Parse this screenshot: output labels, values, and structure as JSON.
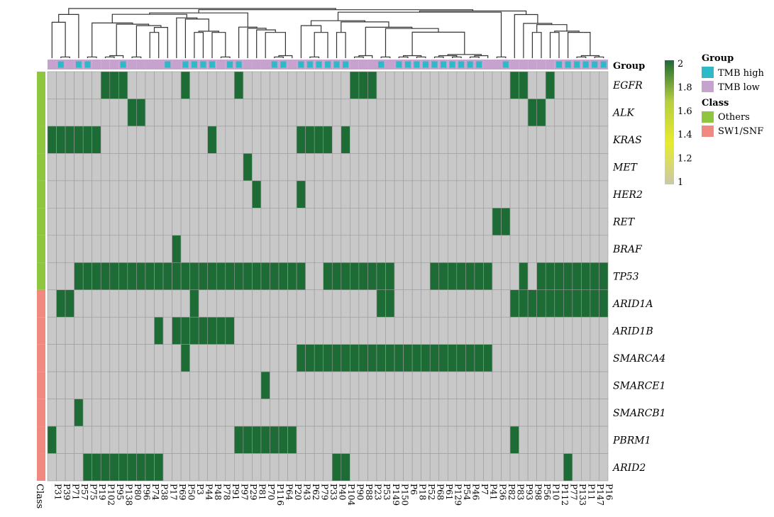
{
  "chart_data": {
    "type": "heatmap",
    "samples": [
      "P31",
      "P39",
      "P71",
      "P57",
      "P75",
      "P19",
      "P102",
      "P95",
      "P138",
      "P80",
      "P96",
      "P74",
      "P38",
      "P17",
      "P69",
      "P50",
      "P3",
      "P44",
      "P48",
      "P78",
      "P91",
      "P97",
      "P29",
      "P81",
      "P70",
      "P116",
      "P64",
      "P20",
      "P43",
      "P62",
      "P79",
      "P33",
      "P40",
      "P104",
      "P90",
      "P88",
      "P23",
      "P53",
      "P149",
      "P150",
      "P6",
      "P18",
      "P52",
      "P68",
      "P61",
      "P129",
      "P54",
      "P46",
      "P7",
      "P41",
      "P36",
      "P82",
      "P83",
      "P93",
      "P98",
      "P56",
      "P10",
      "P112",
      "P77",
      "P133",
      "P11",
      "P147",
      "P16"
    ],
    "genes": [
      "EGFR",
      "ALK",
      "KRAS",
      "MET",
      "HER2",
      "RET",
      "BRAF",
      "TP53",
      "ARID1A",
      "ARID1B",
      "SMARCA4",
      "SMARCE1",
      "SMARCB1",
      "PBRM1",
      "ARID2"
    ],
    "gene_class": [
      "Others",
      "Others",
      "Others",
      "Others",
      "Others",
      "Others",
      "Others",
      "Others",
      "SW1/SNF",
      "SW1/SNF",
      "SW1/SNF",
      "SW1/SNF",
      "SW1/SNF",
      "SW1/SNF",
      "SW1/SNF"
    ],
    "sample_group": [
      "TMB low",
      "TMB high",
      "TMB low",
      "TMB high",
      "TMB high",
      "TMB low",
      "TMB low",
      "TMB low",
      "TMB high",
      "TMB low",
      "TMB low",
      "TMB low",
      "TMB low",
      "TMB high",
      "TMB low",
      "TMB high",
      "TMB high",
      "TMB high",
      "TMB high",
      "TMB low",
      "TMB high",
      "TMB high",
      "TMB low",
      "TMB low",
      "TMB low",
      "TMB high",
      "TMB high",
      "TMB low",
      "TMB high",
      "TMB high",
      "TMB high",
      "TMB high",
      "TMB high",
      "TMB high",
      "TMB low",
      "TMB low",
      "TMB low",
      "TMB high",
      "TMB low",
      "TMB high",
      "TMB high",
      "TMB high",
      "TMB high",
      "TMB high",
      "TMB high",
      "TMB high",
      "TMB high",
      "TMB high",
      "TMB high",
      "TMB low",
      "TMB low",
      "TMB high",
      "TMB low",
      "TMB low",
      "TMB low",
      "TMB low",
      "TMB low",
      "TMB high",
      "TMB high",
      "TMB high",
      "TMB high",
      "TMB high",
      "TMB high"
    ],
    "matrix": [
      [
        1,
        1,
        1,
        1,
        1,
        1,
        2,
        2,
        2,
        1,
        1,
        1,
        1,
        1,
        1,
        2,
        1,
        1,
        1,
        1,
        1,
        2,
        1,
        1,
        1,
        1,
        1,
        1,
        1,
        1,
        1,
        1,
        1,
        1,
        2,
        2,
        2,
        1,
        1,
        1,
        1,
        1,
        1,
        1,
        1,
        1,
        1,
        1,
        1,
        1,
        1,
        1,
        2,
        2,
        1,
        1,
        2,
        1,
        1,
        1,
        1,
        1,
        1
      ],
      [
        1,
        1,
        1,
        1,
        1,
        1,
        1,
        1,
        1,
        2,
        2,
        1,
        1,
        1,
        1,
        1,
        1,
        1,
        1,
        1,
        1,
        1,
        1,
        1,
        1,
        1,
        1,
        1,
        1,
        1,
        1,
        1,
        1,
        1,
        1,
        1,
        1,
        1,
        1,
        1,
        1,
        1,
        1,
        1,
        1,
        1,
        1,
        1,
        1,
        1,
        1,
        1,
        1,
        1,
        2,
        2,
        1,
        1,
        1,
        1,
        1,
        1,
        1
      ],
      [
        2,
        2,
        2,
        2,
        2,
        2,
        1,
        1,
        1,
        1,
        1,
        1,
        1,
        1,
        1,
        1,
        1,
        1,
        2,
        1,
        1,
        1,
        1,
        1,
        1,
        1,
        1,
        1,
        2,
        2,
        2,
        2,
        1,
        2,
        1,
        1,
        1,
        1,
        1,
        1,
        1,
        1,
        1,
        1,
        1,
        1,
        1,
        1,
        1,
        1,
        1,
        1,
        1,
        1,
        1,
        1,
        1,
        1,
        1,
        1,
        1,
        1,
        1
      ],
      [
        1,
        1,
        1,
        1,
        1,
        1,
        1,
        1,
        1,
        1,
        1,
        1,
        1,
        1,
        1,
        1,
        1,
        1,
        1,
        1,
        1,
        1,
        2,
        1,
        1,
        1,
        1,
        1,
        1,
        1,
        1,
        1,
        1,
        1,
        1,
        1,
        1,
        1,
        1,
        1,
        1,
        1,
        1,
        1,
        1,
        1,
        1,
        1,
        1,
        1,
        1,
        1,
        1,
        1,
        1,
        1,
        1,
        1,
        1,
        1,
        1,
        1,
        1
      ],
      [
        1,
        1,
        1,
        1,
        1,
        1,
        1,
        1,
        1,
        1,
        1,
        1,
        1,
        1,
        1,
        1,
        1,
        1,
        1,
        1,
        1,
        1,
        1,
        2,
        1,
        1,
        1,
        1,
        2,
        1,
        1,
        1,
        1,
        1,
        1,
        1,
        1,
        1,
        1,
        1,
        1,
        1,
        1,
        1,
        1,
        1,
        1,
        1,
        1,
        1,
        1,
        1,
        1,
        1,
        1,
        1,
        1,
        1,
        1,
        1,
        1,
        1,
        1
      ],
      [
        1,
        1,
        1,
        1,
        1,
        1,
        1,
        1,
        1,
        1,
        1,
        1,
        1,
        1,
        1,
        1,
        1,
        1,
        1,
        1,
        1,
        1,
        1,
        1,
        1,
        1,
        1,
        1,
        1,
        1,
        1,
        1,
        1,
        1,
        1,
        1,
        1,
        1,
        1,
        1,
        1,
        1,
        1,
        1,
        1,
        1,
        1,
        1,
        1,
        1,
        2,
        2,
        1,
        1,
        1,
        1,
        1,
        1,
        1,
        1,
        1,
        1,
        1
      ],
      [
        1,
        1,
        1,
        1,
        1,
        1,
        1,
        1,
        1,
        1,
        1,
        1,
        1,
        1,
        2,
        1,
        1,
        1,
        1,
        1,
        1,
        1,
        1,
        1,
        1,
        1,
        1,
        1,
        1,
        1,
        1,
        1,
        1,
        1,
        1,
        1,
        1,
        1,
        1,
        1,
        1,
        1,
        1,
        1,
        1,
        1,
        1,
        1,
        1,
        1,
        1,
        1,
        1,
        1,
        1,
        1,
        1,
        1,
        1,
        1,
        1,
        1,
        1
      ],
      [
        1,
        1,
        1,
        2,
        2,
        2,
        2,
        2,
        2,
        2,
        2,
        2,
        2,
        2,
        2,
        2,
        2,
        2,
        2,
        2,
        2,
        2,
        2,
        2,
        2,
        2,
        2,
        2,
        2,
        1,
        1,
        2,
        2,
        2,
        2,
        2,
        2,
        2,
        2,
        1,
        1,
        1,
        1,
        2,
        2,
        2,
        2,
        2,
        2,
        2,
        1,
        1,
        1,
        2,
        1,
        2,
        2,
        2,
        2,
        2,
        2,
        2,
        2
      ],
      [
        1,
        2,
        2,
        1,
        1,
        1,
        1,
        1,
        1,
        1,
        1,
        1,
        1,
        1,
        1,
        1,
        2,
        1,
        1,
        1,
        1,
        1,
        1,
        1,
        1,
        1,
        1,
        1,
        1,
        1,
        1,
        1,
        1,
        1,
        1,
        1,
        1,
        2,
        2,
        1,
        1,
        1,
        1,
        1,
        1,
        1,
        1,
        1,
        1,
        1,
        1,
        1,
        2,
        2,
        2,
        2,
        2,
        2,
        2,
        2,
        2,
        2,
        2
      ],
      [
        1,
        1,
        1,
        1,
        1,
        1,
        1,
        1,
        1,
        1,
        1,
        1,
        2,
        1,
        2,
        2,
        2,
        2,
        2,
        2,
        2,
        1,
        1,
        1,
        1,
        1,
        1,
        1,
        1,
        1,
        1,
        1,
        1,
        1,
        1,
        1,
        1,
        1,
        1,
        1,
        1,
        1,
        1,
        1,
        1,
        1,
        1,
        1,
        1,
        1,
        1,
        1,
        1,
        1,
        1,
        1,
        1,
        1,
        1,
        1,
        1,
        1,
        1
      ],
      [
        1,
        1,
        1,
        1,
        1,
        1,
        1,
        1,
        1,
        1,
        1,
        1,
        1,
        1,
        1,
        2,
        1,
        1,
        1,
        1,
        1,
        1,
        1,
        1,
        1,
        1,
        1,
        1,
        2,
        2,
        2,
        2,
        2,
        2,
        2,
        2,
        2,
        2,
        2,
        2,
        2,
        2,
        2,
        2,
        2,
        2,
        2,
        2,
        2,
        2,
        1,
        1,
        1,
        1,
        1,
        1,
        1,
        1,
        1,
        1,
        1,
        1,
        1
      ],
      [
        1,
        1,
        1,
        1,
        1,
        1,
        1,
        1,
        1,
        1,
        1,
        1,
        1,
        1,
        1,
        1,
        1,
        1,
        1,
        1,
        1,
        1,
        1,
        1,
        2,
        1,
        1,
        1,
        1,
        1,
        1,
        1,
        1,
        1,
        1,
        1,
        1,
        1,
        1,
        1,
        1,
        1,
        1,
        1,
        1,
        1,
        1,
        1,
        1,
        1,
        1,
        1,
        1,
        1,
        1,
        1,
        1,
        1,
        1,
        1,
        1,
        1,
        1
      ],
      [
        1,
        1,
        1,
        2,
        1,
        1,
        1,
        1,
        1,
        1,
        1,
        1,
        1,
        1,
        1,
        1,
        1,
        1,
        1,
        1,
        1,
        1,
        1,
        1,
        1,
        1,
        1,
        1,
        1,
        1,
        1,
        1,
        1,
        1,
        1,
        1,
        1,
        1,
        1,
        1,
        1,
        1,
        1,
        1,
        1,
        1,
        1,
        1,
        1,
        1,
        1,
        1,
        1,
        1,
        1,
        1,
        1,
        1,
        1,
        1,
        1,
        1,
        1
      ],
      [
        2,
        1,
        1,
        1,
        1,
        1,
        1,
        1,
        1,
        1,
        1,
        1,
        1,
        1,
        1,
        1,
        1,
        1,
        1,
        1,
        1,
        2,
        2,
        2,
        2,
        2,
        2,
        2,
        1,
        1,
        1,
        1,
        1,
        1,
        1,
        1,
        1,
        1,
        1,
        1,
        1,
        1,
        1,
        1,
        1,
        1,
        1,
        1,
        1,
        1,
        1,
        1,
        2,
        1,
        1,
        1,
        1,
        1,
        1,
        1,
        1,
        1,
        1
      ],
      [
        1,
        1,
        1,
        1,
        2,
        2,
        2,
        2,
        2,
        2,
        2,
        2,
        2,
        1,
        1,
        1,
        1,
        1,
        1,
        1,
        1,
        1,
        1,
        1,
        1,
        1,
        1,
        1,
        1,
        1,
        1,
        1,
        2,
        2,
        1,
        1,
        1,
        1,
        1,
        1,
        1,
        1,
        1,
        1,
        1,
        1,
        1,
        1,
        1,
        1,
        1,
        1,
        1,
        1,
        1,
        1,
        1,
        1,
        2,
        1,
        1,
        1,
        1
      ]
    ],
    "value_range": [
      1,
      2
    ],
    "colorbar_ticks": [
      "2",
      "1.8",
      "1.6",
      "1.4",
      "1.2",
      "1"
    ],
    "colors": {
      "low": "#c8c8c8",
      "high": "#1d6b35",
      "colorbar": [
        "#1d6b35",
        "#b6cf3f",
        "#e8ea2f",
        "#c9c9a9"
      ],
      "grid": "#9a9a9a",
      "group_TMB_high": "#2eb9c6",
      "group_TMB_low": "#c7a2cf",
      "class_Others": "#8ec63f",
      "class_SWI_SNF": "#f08a80",
      "dendrogram": "#333333"
    },
    "legend": {
      "group_title": "Group",
      "group_items": [
        "TMB high",
        "TMB low"
      ],
      "class_title": "Class",
      "class_items": [
        "Others",
        "SW1/SNF"
      ]
    },
    "group_row_label": "Group",
    "class_col_label": "Class"
  }
}
